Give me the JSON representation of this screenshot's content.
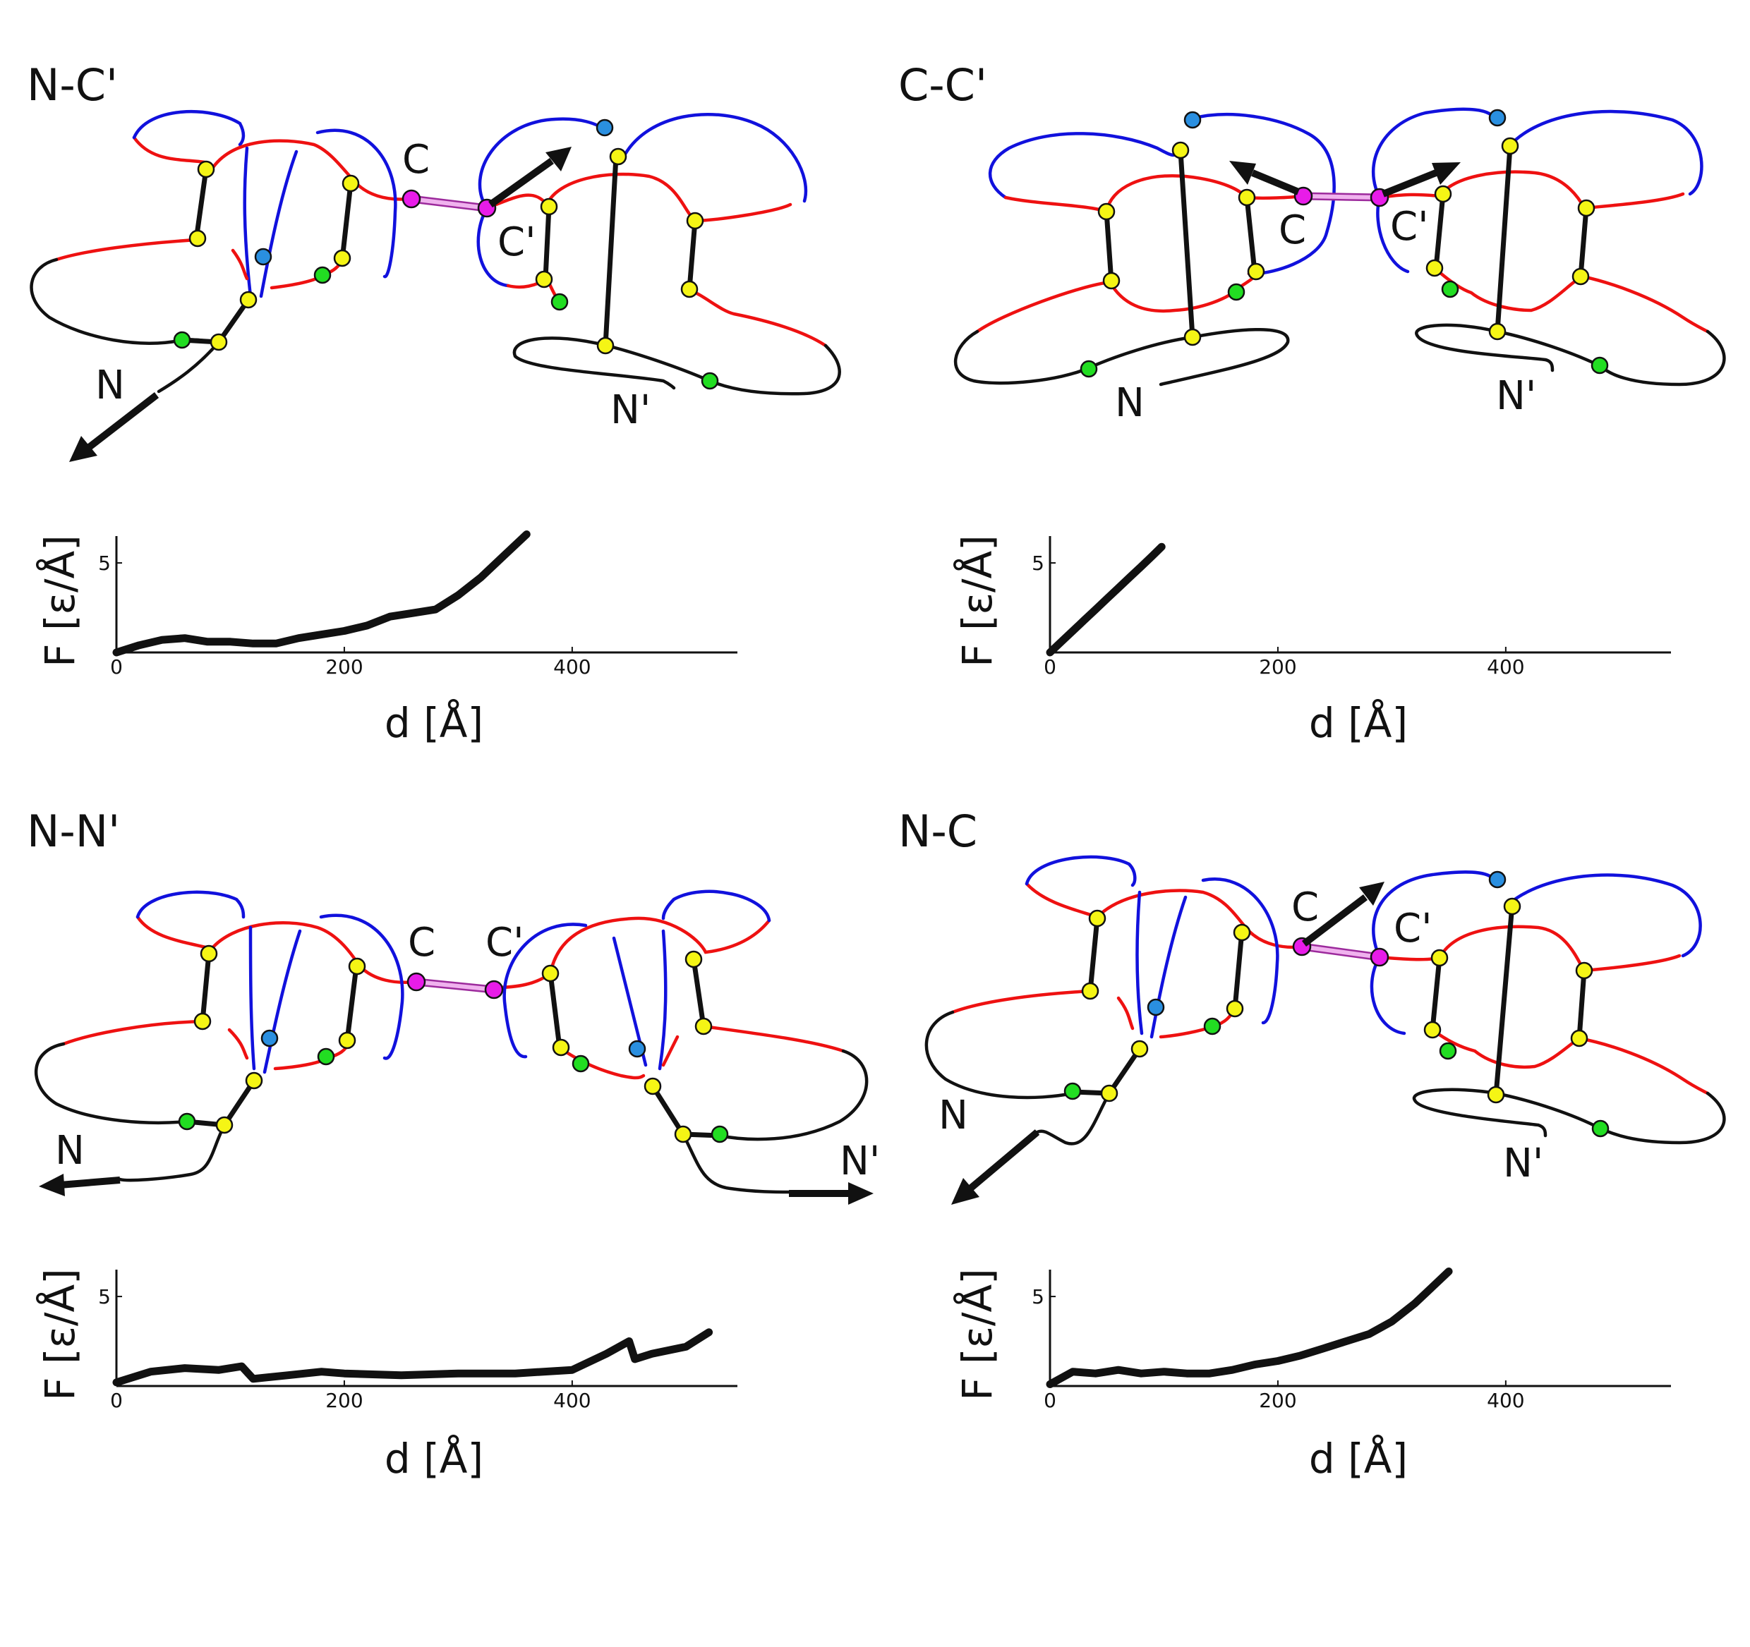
{
  "colors": {
    "red_segment": "#ee1111",
    "blue_segment": "#1111dd",
    "black_segment": "#111111",
    "yellow_bead": "#f5f515",
    "green_bead": "#22dd22",
    "blue_bead": "#2a8fe0",
    "magenta_bead": "#e81ce8",
    "tether": "#e9a6ea"
  },
  "panels": [
    {
      "id": "nc-prime",
      "label": "N-C'",
      "terminal_labels": [
        "C",
        "C'",
        "N",
        "N'"
      ],
      "arrow_icons": [
        "pull-arrow-n-icon",
        "pull-arrow-c-prime-icon"
      ]
    },
    {
      "id": "cc-prime",
      "label": "C-C'",
      "terminal_labels": [
        "C",
        "C'",
        "N",
        "N'"
      ],
      "arrow_icons": [
        "pull-arrow-c-icon",
        "pull-arrow-c-prime-icon"
      ]
    },
    {
      "id": "nn-prime",
      "label": "N-N'",
      "terminal_labels": [
        "C",
        "C'",
        "N",
        "N'"
      ],
      "arrow_icons": [
        "pull-arrow-n-icon",
        "pull-arrow-n-prime-icon"
      ]
    },
    {
      "id": "nc",
      "label": "N-C",
      "terminal_labels": [
        "C",
        "C'",
        "N",
        "N'"
      ],
      "arrow_icons": [
        "pull-arrow-n-icon",
        "pull-arrow-c-icon"
      ]
    }
  ],
  "chart_data": [
    {
      "type": "line",
      "panel": "N-C'",
      "xlabel": "d [Å]",
      "ylabel": "F  [ε/Å]",
      "xlim": [
        0,
        545
      ],
      "ylim": [
        0,
        6.5
      ],
      "xticks": [
        0,
        200,
        400
      ],
      "yticks": [
        5
      ],
      "grid": false,
      "x": [
        0,
        20,
        40,
        60,
        80,
        100,
        120,
        140,
        160,
        180,
        200,
        220,
        240,
        260,
        280,
        300,
        320,
        340,
        360
      ],
      "y": [
        0.0,
        0.4,
        0.7,
        0.8,
        0.6,
        0.6,
        0.5,
        0.5,
        0.8,
        1.0,
        1.2,
        1.5,
        2.0,
        2.2,
        2.4,
        3.2,
        4.2,
        5.4,
        6.6
      ]
    },
    {
      "type": "line",
      "panel": "C-C'",
      "xlabel": "d [Å]",
      "ylabel": "F  [ε/Å]",
      "xlim": [
        0,
        545
      ],
      "ylim": [
        0,
        6.5
      ],
      "xticks": [
        0,
        200,
        400
      ],
      "yticks": [
        5
      ],
      "grid": false,
      "x": [
        0,
        10,
        20,
        30,
        40,
        50,
        60,
        70,
        80,
        90,
        98
      ],
      "y": [
        0.0,
        0.6,
        1.2,
        1.8,
        2.4,
        3.0,
        3.6,
        4.2,
        4.8,
        5.4,
        5.9
      ]
    },
    {
      "type": "line",
      "panel": "N-N'",
      "xlabel": "d [Å]",
      "ylabel": "F  [ε/Å]",
      "xlim": [
        0,
        545
      ],
      "ylim": [
        0,
        6.5
      ],
      "xticks": [
        0,
        200,
        400
      ],
      "yticks": [
        5
      ],
      "grid": false,
      "x": [
        0,
        30,
        60,
        90,
        110,
        120,
        150,
        180,
        200,
        250,
        300,
        350,
        400,
        430,
        450,
        455,
        470,
        500,
        520
      ],
      "y": [
        0.2,
        0.8,
        1.0,
        0.9,
        1.1,
        0.4,
        0.6,
        0.8,
        0.7,
        0.6,
        0.7,
        0.7,
        0.9,
        1.8,
        2.5,
        1.5,
        1.8,
        2.2,
        3.0
      ]
    },
    {
      "type": "line",
      "panel": "N-C",
      "xlabel": "d [Å]",
      "ylabel": "F  [ε/Å]",
      "xlim": [
        0,
        545
      ],
      "ylim": [
        0,
        6.5
      ],
      "xticks": [
        0,
        200,
        400
      ],
      "yticks": [
        5
      ],
      "grid": false,
      "x": [
        0,
        20,
        40,
        60,
        80,
        100,
        120,
        140,
        160,
        180,
        200,
        220,
        240,
        260,
        280,
        300,
        320,
        340,
        350
      ],
      "y": [
        0.1,
        0.8,
        0.7,
        0.9,
        0.7,
        0.8,
        0.7,
        0.7,
        0.9,
        1.2,
        1.4,
        1.7,
        2.1,
        2.5,
        2.9,
        3.6,
        4.6,
        5.8,
        6.4
      ]
    }
  ]
}
